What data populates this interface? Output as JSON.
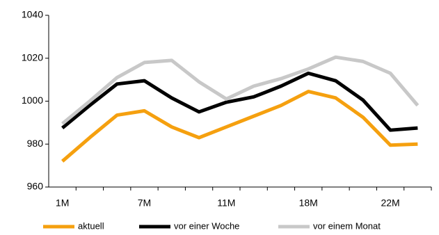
{
  "chart_data": {
    "type": "line",
    "categories": [
      "1M",
      null,
      null,
      "7M",
      null,
      null,
      "11M",
      null,
      null,
      "18M",
      null,
      null,
      "22M",
      null
    ],
    "series": [
      {
        "name": "aktuell",
        "color": "#f5a00f",
        "values": [
          972,
          983,
          993.5,
          995.5,
          988,
          983,
          988,
          993,
          998,
          1004.5,
          1001.5,
          992.5,
          979.5,
          980
        ]
      },
      {
        "name": "vor einer Woche",
        "color": "#000000",
        "values": [
          987.5,
          998,
          1008,
          1009.5,
          1001.5,
          995,
          999.5,
          1002,
          1007,
          1013,
          1009.5,
          1000.5,
          986.5,
          987.5
        ]
      },
      {
        "name": "vor einem Monat",
        "color": "#c8c8c8",
        "values": [
          989.5,
          1000,
          1011,
          1018,
          1019,
          1009,
          1001,
          1007,
          1010.5,
          1015,
          1020.5,
          1018.5,
          1013,
          998
        ]
      }
    ],
    "ylim": [
      960,
      1040
    ],
    "yticks": [
      960,
      980,
      1000,
      1020,
      1040
    ],
    "grid": false,
    "legend": "bottom"
  }
}
